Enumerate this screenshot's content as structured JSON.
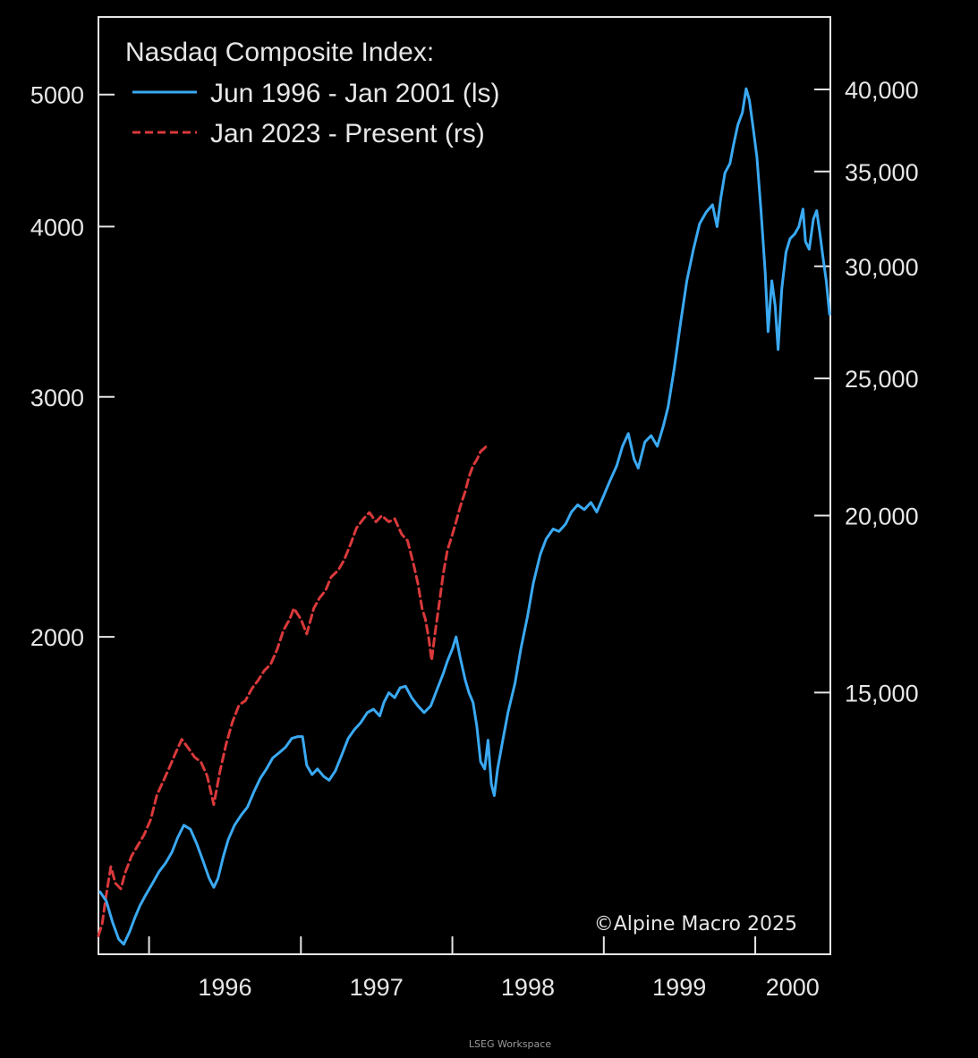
{
  "chart_data": {
    "type": "line",
    "title": "Nasdaq Composite Index:",
    "credit": "©Alpine Macro 2025",
    "source": "LSEG Workspace",
    "grid": false,
    "legend_position": "top-left",
    "x_axis": {
      "type": "date",
      "ticks": [
        "1996",
        "1997",
        "1998",
        "1999",
        "2000"
      ],
      "range": [
        "1995-09-01",
        "2000-06-30"
      ]
    },
    "y_left": {
      "scale": "log",
      "ticks": [
        {
          "value": 2000,
          "label": "2000"
        },
        {
          "value": 3000,
          "label": "3000"
        },
        {
          "value": 4000,
          "label": "4000"
        },
        {
          "value": 5000,
          "label": "5000"
        }
      ],
      "range": [
        1170,
        5700
      ]
    },
    "y_right": {
      "scale": "log",
      "ticks": [
        {
          "value": 15000,
          "label": "15,000"
        },
        {
          "value": 20000,
          "label": "20,000"
        },
        {
          "value": 25000,
          "label": "25,000"
        },
        {
          "value": 30000,
          "label": "30,000"
        },
        {
          "value": 35000,
          "label": "35,000"
        },
        {
          "value": 40000,
          "label": "40,000"
        }
      ],
      "range": [
        9800,
        45000
      ]
    },
    "series": [
      {
        "name": "Jun 1996 - Jan 2001 (ls)",
        "axis": "left",
        "color": "#3aa9f2",
        "dash": "solid",
        "points": [
          [
            "1995-09-05",
            1300
          ],
          [
            "1995-09-20",
            1280
          ],
          [
            "1995-10-05",
            1235
          ],
          [
            "1995-10-20",
            1200
          ],
          [
            "1995-11-01",
            1190
          ],
          [
            "1995-11-15",
            1215
          ],
          [
            "1995-11-28",
            1245
          ],
          [
            "1995-12-10",
            1270
          ],
          [
            "1995-12-22",
            1290
          ],
          [
            "1996-01-10",
            1320
          ],
          [
            "1996-01-25",
            1345
          ],
          [
            "1996-02-10",
            1365
          ],
          [
            "1996-02-25",
            1390
          ],
          [
            "1996-03-10",
            1425
          ],
          [
            "1996-03-25",
            1455
          ],
          [
            "1996-04-10",
            1445
          ],
          [
            "1996-04-25",
            1410
          ],
          [
            "1996-05-10",
            1370
          ],
          [
            "1996-05-25",
            1330
          ],
          [
            "1996-06-05",
            1310
          ],
          [
            "1996-06-15",
            1330
          ],
          [
            "1996-06-28",
            1380
          ],
          [
            "1996-07-10",
            1420
          ],
          [
            "1996-07-25",
            1455
          ],
          [
            "1996-08-10",
            1480
          ],
          [
            "1996-08-25",
            1500
          ],
          [
            "1996-09-10",
            1540
          ],
          [
            "1996-09-25",
            1575
          ],
          [
            "1996-10-10",
            1600
          ],
          [
            "1996-10-25",
            1630
          ],
          [
            "1996-11-10",
            1645
          ],
          [
            "1996-11-25",
            1660
          ],
          [
            "1996-12-10",
            1685
          ],
          [
            "1996-12-25",
            1690
          ],
          [
            "1997-01-05",
            1690
          ],
          [
            "1997-01-15",
            1610
          ],
          [
            "1997-01-28",
            1585
          ],
          [
            "1997-02-10",
            1600
          ],
          [
            "1997-02-25",
            1580
          ],
          [
            "1997-03-10",
            1570
          ],
          [
            "1997-03-25",
            1595
          ],
          [
            "1997-04-10",
            1640
          ],
          [
            "1997-04-25",
            1685
          ],
          [
            "1997-05-10",
            1710
          ],
          [
            "1997-05-25",
            1730
          ],
          [
            "1997-06-10",
            1760
          ],
          [
            "1997-06-25",
            1770
          ],
          [
            "1997-07-10",
            1750
          ],
          [
            "1997-07-20",
            1790
          ],
          [
            "1997-08-01",
            1820
          ],
          [
            "1997-08-15",
            1805
          ],
          [
            "1997-08-28",
            1835
          ],
          [
            "1997-09-10",
            1840
          ],
          [
            "1997-09-25",
            1805
          ],
          [
            "1997-10-10",
            1780
          ],
          [
            "1997-10-25",
            1760
          ],
          [
            "1997-11-10",
            1780
          ],
          [
            "1997-11-25",
            1830
          ],
          [
            "1997-12-10",
            1880
          ],
          [
            "1997-12-20",
            1920
          ],
          [
            "1998-01-01",
            1960
          ],
          [
            "1998-01-10",
            2000
          ],
          [
            "1998-01-20",
            1930
          ],
          [
            "1998-02-01",
            1860
          ],
          [
            "1998-02-10",
            1820
          ],
          [
            "1998-02-20",
            1790
          ],
          [
            "1998-03-01",
            1720
          ],
          [
            "1998-03-10",
            1620
          ],
          [
            "1998-03-20",
            1600
          ],
          [
            "1998-03-28",
            1680
          ],
          [
            "1998-04-05",
            1560
          ],
          [
            "1998-04-12",
            1530
          ],
          [
            "1998-04-20",
            1600
          ],
          [
            "1998-05-01",
            1670
          ],
          [
            "1998-05-15",
            1760
          ],
          [
            "1998-06-01",
            1850
          ],
          [
            "1998-06-15",
            1960
          ],
          [
            "1998-07-01",
            2070
          ],
          [
            "1998-07-15",
            2190
          ],
          [
            "1998-08-01",
            2300
          ],
          [
            "1998-08-15",
            2360
          ],
          [
            "1998-09-01",
            2400
          ],
          [
            "1998-09-15",
            2390
          ],
          [
            "1998-10-01",
            2420
          ],
          [
            "1998-10-15",
            2470
          ],
          [
            "1998-10-30",
            2500
          ],
          [
            "1998-11-15",
            2480
          ],
          [
            "1998-12-01",
            2510
          ],
          [
            "1998-12-15",
            2470
          ],
          [
            "1999-01-01",
            2540
          ],
          [
            "1999-01-15",
            2600
          ],
          [
            "1999-02-01",
            2670
          ],
          [
            "1999-02-15",
            2760
          ],
          [
            "1999-03-01",
            2820
          ],
          [
            "1999-03-15",
            2700
          ],
          [
            "1999-03-25",
            2660
          ],
          [
            "1999-04-10",
            2780
          ],
          [
            "1999-04-25",
            2810
          ],
          [
            "1999-05-10",
            2760
          ],
          [
            "1999-05-25",
            2860
          ],
          [
            "1999-06-05",
            2950
          ],
          [
            "1999-06-20",
            3150
          ],
          [
            "1999-07-05",
            3400
          ],
          [
            "1999-07-20",
            3650
          ],
          [
            "1999-08-05",
            3850
          ],
          [
            "1999-08-20",
            4020
          ],
          [
            "1999-09-05",
            4100
          ],
          [
            "1999-09-20",
            4150
          ],
          [
            "1999-10-01",
            4000
          ],
          [
            "1999-10-10",
            4200
          ],
          [
            "1999-10-20",
            4380
          ],
          [
            "1999-11-01",
            4450
          ],
          [
            "1999-11-10",
            4600
          ],
          [
            "1999-11-20",
            4750
          ],
          [
            "1999-12-01",
            4850
          ],
          [
            "1999-12-10",
            5050
          ],
          [
            "1999-12-18",
            4950
          ],
          [
            "1999-12-28",
            4700
          ],
          [
            "2000-01-05",
            4500
          ],
          [
            "2000-01-15",
            4100
          ],
          [
            "2000-01-25",
            3700
          ],
          [
            "2000-02-01",
            3350
          ],
          [
            "2000-02-10",
            3650
          ],
          [
            "2000-02-18",
            3500
          ],
          [
            "2000-02-25",
            3250
          ],
          [
            "2000-03-05",
            3600
          ],
          [
            "2000-03-15",
            3830
          ],
          [
            "2000-03-25",
            3920
          ],
          [
            "2000-04-05",
            3950
          ],
          [
            "2000-04-15",
            4000
          ],
          [
            "2000-04-25",
            4120
          ],
          [
            "2000-05-01",
            3900
          ],
          [
            "2000-05-10",
            3850
          ],
          [
            "2000-05-20",
            4050
          ],
          [
            "2000-05-28",
            4110
          ],
          [
            "2000-06-05",
            3950
          ],
          [
            "2000-06-12",
            3800
          ],
          [
            "2000-06-20",
            3650
          ],
          [
            "2000-06-28",
            3450
          ]
        ]
      },
      {
        "name": "Jan 2023 - Present (rs)",
        "axis": "right",
        "color": "#d9393b",
        "dash": "dashed",
        "points": [
          [
            "1995-09-01",
            10100
          ],
          [
            "1995-09-10",
            10300
          ],
          [
            "1995-09-20",
            10800
          ],
          [
            "1995-10-01",
            11300
          ],
          [
            "1995-10-12",
            11000
          ],
          [
            "1995-10-25",
            10900
          ],
          [
            "1995-11-05",
            11200
          ],
          [
            "1995-11-20",
            11500
          ],
          [
            "1995-12-05",
            11700
          ],
          [
            "1995-12-20",
            11900
          ],
          [
            "1996-01-05",
            12200
          ],
          [
            "1996-01-20",
            12700
          ],
          [
            "1996-02-05",
            13000
          ],
          [
            "1996-02-20",
            13300
          ],
          [
            "1996-03-05",
            13600
          ],
          [
            "1996-03-20",
            13900
          ],
          [
            "1996-04-05",
            13700
          ],
          [
            "1996-04-20",
            13500
          ],
          [
            "1996-05-05",
            13400
          ],
          [
            "1996-05-20",
            13100
          ],
          [
            "1996-06-05",
            12500
          ],
          [
            "1996-06-20",
            13200
          ],
          [
            "1996-07-05",
            13800
          ],
          [
            "1996-07-20",
            14300
          ],
          [
            "1996-08-05",
            14700
          ],
          [
            "1996-08-20",
            14800
          ],
          [
            "1996-09-05",
            15100
          ],
          [
            "1996-09-20",
            15300
          ],
          [
            "1996-10-05",
            15550
          ],
          [
            "1996-10-20",
            15700
          ],
          [
            "1996-11-05",
            16100
          ],
          [
            "1996-11-20",
            16600
          ],
          [
            "1996-12-05",
            16900
          ],
          [
            "1996-12-15",
            17200
          ],
          [
            "1997-01-01",
            16900
          ],
          [
            "1997-01-15",
            16500
          ],
          [
            "1997-02-01",
            17200
          ],
          [
            "1997-02-15",
            17500
          ],
          [
            "1997-03-01",
            17700
          ],
          [
            "1997-03-15",
            18100
          ],
          [
            "1997-04-01",
            18300
          ],
          [
            "1997-04-15",
            18600
          ],
          [
            "1997-05-01",
            19100
          ],
          [
            "1997-05-15",
            19600
          ],
          [
            "1997-06-01",
            19900
          ],
          [
            "1997-06-15",
            20100
          ],
          [
            "1997-07-01",
            19800
          ],
          [
            "1997-07-15",
            20000
          ],
          [
            "1997-08-01",
            19800
          ],
          [
            "1997-08-15",
            19900
          ],
          [
            "1997-09-01",
            19400
          ],
          [
            "1997-09-15",
            19200
          ],
          [
            "1997-10-01",
            18400
          ],
          [
            "1997-10-10",
            17900
          ],
          [
            "1997-10-20",
            17200
          ],
          [
            "1997-10-28",
            16900
          ],
          [
            "1997-11-05",
            16400
          ],
          [
            "1997-11-12",
            15800
          ],
          [
            "1997-11-20",
            16500
          ],
          [
            "1997-12-01",
            17400
          ],
          [
            "1997-12-10",
            18200
          ],
          [
            "1997-12-20",
            18900
          ],
          [
            "1998-01-01",
            19400
          ],
          [
            "1998-01-10",
            19800
          ],
          [
            "1998-01-20",
            20300
          ],
          [
            "1998-02-01",
            20800
          ],
          [
            "1998-02-10",
            21300
          ],
          [
            "1998-02-20",
            21700
          ],
          [
            "1998-03-01",
            21900
          ],
          [
            "1998-03-10",
            22200
          ],
          [
            "1998-03-18",
            22300
          ],
          [
            "1998-03-25",
            22400
          ]
        ]
      }
    ]
  }
}
